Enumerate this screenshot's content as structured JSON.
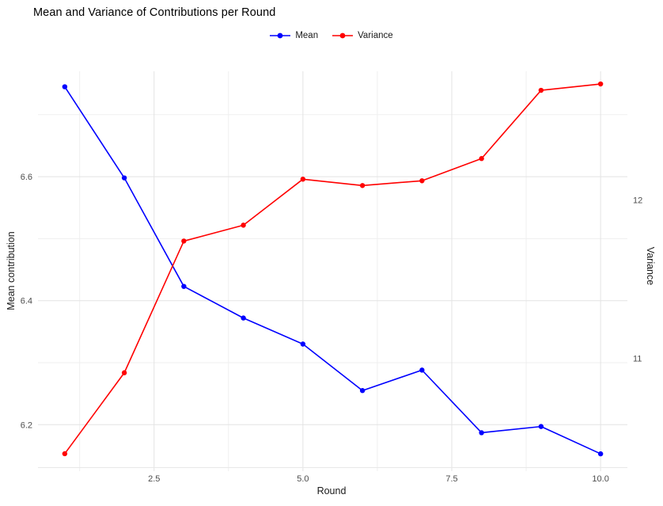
{
  "chart_data": {
    "type": "line",
    "title": "Mean and Variance of Contributions per Round",
    "xlabel": "Round",
    "ylabel_left": "Mean contribution",
    "ylabel_right": "Variance",
    "legend_position": "top-center",
    "background": "#FFFFFF",
    "gridline_color_major": "#E3E3E3",
    "gridline_color_minor": "#EFEFEF",
    "axis_line_color": "#E8E8E8",
    "tick_label_color": "#4D4D4D",
    "x": [
      1,
      2,
      3,
      4,
      5,
      6,
      7,
      8,
      9,
      10
    ],
    "series": [
      {
        "name": "Mean",
        "axis": "left",
        "color": "#0000FF",
        "values": [
          6.745,
          6.598,
          6.423,
          6.372,
          6.33,
          6.255,
          6.288,
          6.187,
          6.197,
          6.153
        ]
      },
      {
        "name": "Variance",
        "axis": "right",
        "color": "#FF0000",
        "values": [
          10.4,
          10.91,
          11.74,
          11.84,
          12.13,
          12.09,
          12.12,
          12.26,
          12.69,
          12.73
        ]
      }
    ],
    "x_axis": {
      "range": [
        0.55,
        10.45
      ],
      "ticks": [
        2.5,
        5.0,
        7.5,
        10.0
      ],
      "tick_labels": [
        "2.5",
        "5.0",
        "7.5",
        "10.0"
      ],
      "minor_ticks": [
        1.25,
        3.75,
        6.25,
        8.75
      ]
    },
    "y_axis_left": {
      "range": [
        6.125,
        6.77
      ],
      "ticks": [
        6.2,
        6.4,
        6.6
      ],
      "tick_labels": [
        "6.2",
        "6.4",
        "6.6"
      ],
      "minor_ticks": [
        6.3,
        6.5,
        6.7
      ]
    },
    "y_axis_right": {
      "range": [
        10.29,
        12.81
      ],
      "ticks": [
        11,
        12
      ],
      "tick_labels": [
        "11",
        "12"
      ]
    },
    "grid": true
  }
}
